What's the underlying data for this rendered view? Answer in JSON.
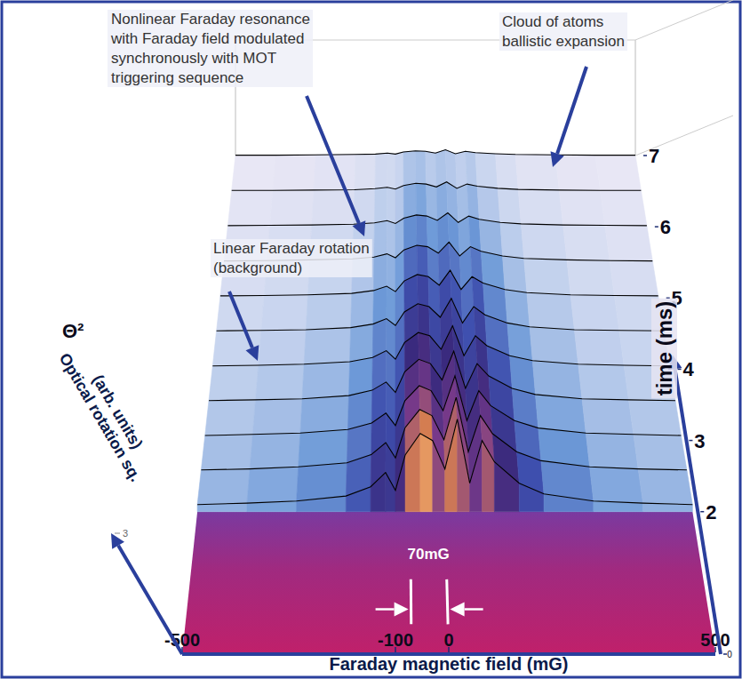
{
  "chart_data": {
    "type": "waterfall",
    "x_label": "Faraday magnetic field (mG)",
    "y_label": "Optical rotation sq.\n(arb. units)",
    "y_symbol": "Θ²",
    "z_label": "time (ms)",
    "color": "#000000",
    "x": [
      -500,
      -400,
      -300,
      -200,
      -150,
      -120,
      -100,
      -80,
      -50,
      -25,
      0,
      25,
      50,
      75,
      100,
      150,
      200,
      300,
      400,
      500
    ],
    "xlim": [
      -500,
      500
    ],
    "xticks": [
      -500,
      -100,
      0,
      500
    ],
    "ylim": [
      0,
      3
    ],
    "yticks": [
      3
    ],
    "zlim": [
      0,
      7
    ],
    "zticks": [
      0,
      2,
      3,
      4,
      5,
      6,
      7
    ],
    "series": [
      {
        "time": 2,
        "values": [
          0.2,
          0.24,
          0.3,
          0.44,
          0.7,
          1.1,
          0.6,
          1.6,
          2.2,
          2.0,
          1.2,
          2.6,
          0.8,
          2.0,
          1.4,
          0.8,
          0.5,
          0.3,
          0.24,
          0.2
        ]
      },
      {
        "time": 2.5,
        "values": [
          0.17,
          0.2,
          0.26,
          0.37,
          0.6,
          0.94,
          0.51,
          1.36,
          1.87,
          1.7,
          1.02,
          2.21,
          0.68,
          1.7,
          1.19,
          0.68,
          0.43,
          0.26,
          0.2,
          0.17
        ]
      },
      {
        "time": 3,
        "values": [
          0.14,
          0.17,
          0.21,
          0.31,
          0.49,
          0.77,
          0.42,
          1.12,
          1.54,
          1.4,
          0.84,
          1.82,
          0.56,
          1.4,
          0.98,
          0.56,
          0.35,
          0.21,
          0.17,
          0.14
        ]
      },
      {
        "time": 3.5,
        "values": [
          0.12,
          0.14,
          0.17,
          0.26,
          0.41,
          0.64,
          0.35,
          0.93,
          1.28,
          1.16,
          0.7,
          1.51,
          0.46,
          1.16,
          0.81,
          0.46,
          0.29,
          0.17,
          0.14,
          0.12
        ]
      },
      {
        "time": 4,
        "values": [
          0.09,
          0.11,
          0.14,
          0.21,
          0.33,
          0.52,
          0.28,
          0.75,
          1.03,
          0.94,
          0.56,
          1.22,
          0.38,
          0.94,
          0.66,
          0.38,
          0.24,
          0.14,
          0.11,
          0.09
        ]
      },
      {
        "time": 4.5,
        "values": [
          0.08,
          0.09,
          0.11,
          0.17,
          0.27,
          0.42,
          0.23,
          0.61,
          0.84,
          0.76,
          0.46,
          0.99,
          0.3,
          0.76,
          0.53,
          0.3,
          0.19,
          0.11,
          0.09,
          0.08
        ]
      },
      {
        "time": 5,
        "values": [
          0.06,
          0.07,
          0.09,
          0.13,
          0.21,
          0.33,
          0.18,
          0.48,
          0.66,
          0.6,
          0.36,
          0.78,
          0.24,
          0.6,
          0.42,
          0.24,
          0.15,
          0.09,
          0.07,
          0.06
        ]
      },
      {
        "time": 5.5,
        "values": [
          0.04,
          0.05,
          0.07,
          0.1,
          0.15,
          0.24,
          0.13,
          0.35,
          0.48,
          0.44,
          0.26,
          0.57,
          0.18,
          0.44,
          0.31,
          0.18,
          0.11,
          0.07,
          0.05,
          0.04
        ]
      },
      {
        "time": 6,
        "values": [
          0.03,
          0.04,
          0.05,
          0.07,
          0.11,
          0.17,
          0.09,
          0.24,
          0.33,
          0.3,
          0.18,
          0.39,
          0.12,
          0.3,
          0.21,
          0.12,
          0.08,
          0.05,
          0.04,
          0.03
        ]
      },
      {
        "time": 6.5,
        "values": [
          0.02,
          0.02,
          0.03,
          0.04,
          0.07,
          0.11,
          0.06,
          0.16,
          0.22,
          0.2,
          0.12,
          0.26,
          0.08,
          0.2,
          0.14,
          0.08,
          0.05,
          0.03,
          0.02,
          0.02
        ]
      },
      {
        "time": 7,
        "values": [
          0.01,
          0.01,
          0.02,
          0.03,
          0.04,
          0.07,
          0.04,
          0.1,
          0.13,
          0.12,
          0.07,
          0.16,
          0.05,
          0.12,
          0.08,
          0.05,
          0.03,
          0.02,
          0.01,
          0.01
        ]
      }
    ],
    "annotations": [
      {
        "text": "Nonlinear Faraday resonance\nwith Faraday field modulated\nsynchronously with MOT\ntriggering sequence"
      },
      {
        "text": "Cloud of atoms\nballistic expansion"
      },
      {
        "text": "Linear Faraday rotation\n(background)"
      }
    ],
    "width_marker": {
      "label": "70mG",
      "from": -70,
      "to": 0
    }
  }
}
